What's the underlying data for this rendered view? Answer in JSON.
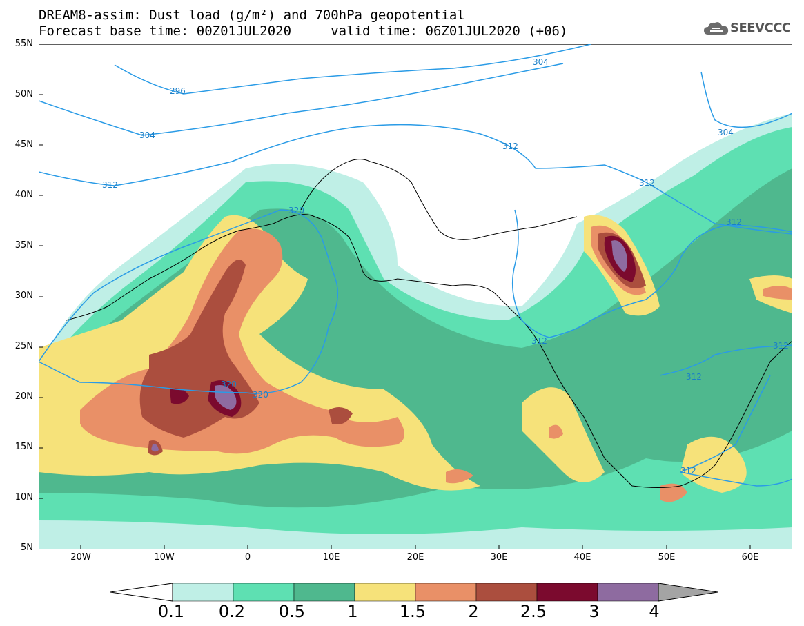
{
  "title": {
    "line1": "DREAM8-assim: Dust load (g/m²) and 700hPa geopotential",
    "line2": "Forecast base time: 00Z01JUL2020     valid time: 06Z01JUL2020 (+06)"
  },
  "logo": {
    "text": "SEEVCCC",
    "icon": "cloud-icon"
  },
  "axes": {
    "lat_labels": [
      "55N",
      "50N",
      "45N",
      "40N",
      "35N",
      "30N",
      "25N",
      "20N",
      "15N",
      "10N",
      "5N"
    ],
    "lon_labels": [
      "20W",
      "10W",
      "0",
      "10E",
      "20E",
      "30E",
      "40E",
      "50E",
      "60E"
    ]
  },
  "contour_labels": [
    "296",
    "304",
    "304",
    "304",
    "312",
    "312",
    "312",
    "312",
    "312",
    "312",
    "312",
    "312",
    "320",
    "320",
    "320"
  ],
  "colorbar": {
    "labels": [
      "0.1",
      "0.2",
      "0.5",
      "1",
      "1.5",
      "2",
      "2.5",
      "3",
      "4"
    ],
    "colors": [
      "#bfefe6",
      "#5ee0b2",
      "#4fb88e",
      "#f6e27a",
      "#e99067",
      "#ab4e3e",
      "#7b0a2e",
      "#8e6ba0"
    ],
    "under_color": "#ffffff",
    "over_color": "#a4a4a4"
  },
  "colors": {
    "contour_line": "#2a9be6",
    "land_border": "#000000"
  }
}
